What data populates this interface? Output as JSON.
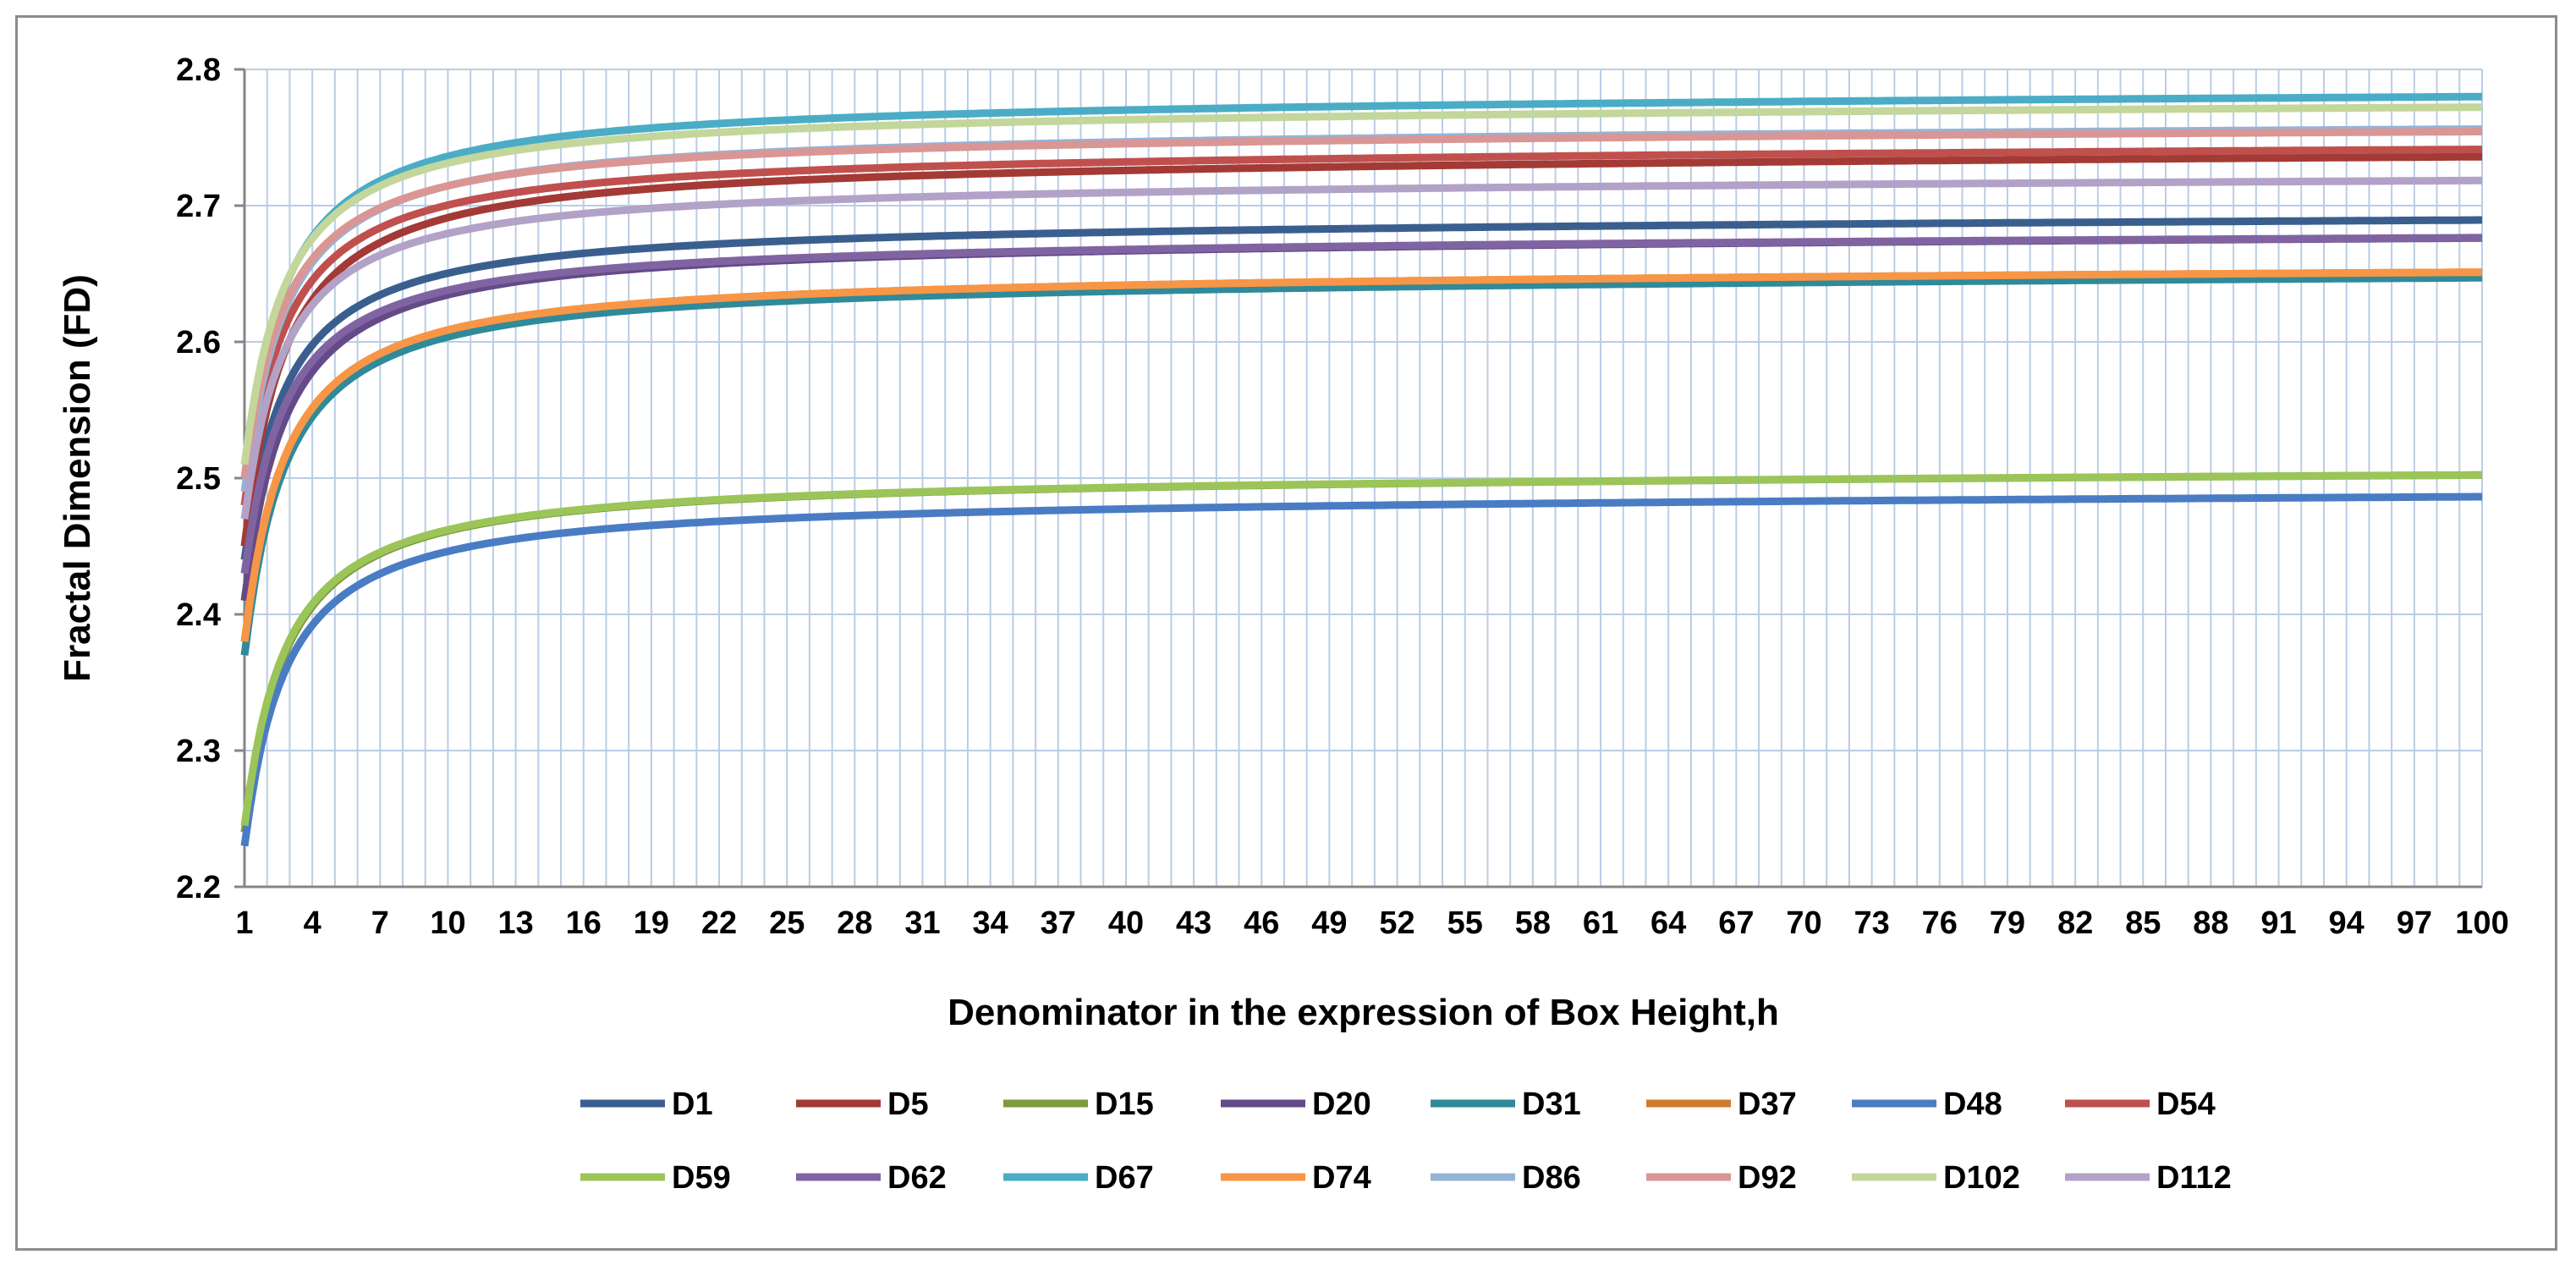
{
  "chart_data": {
    "type": "line",
    "title": "",
    "xlabel": "Denominator in the expression of Box Height,h",
    "ylabel": "Fractal Dimension (FD)",
    "xlim": [
      1,
      100
    ],
    "ylim": [
      2.2,
      2.8
    ],
    "x_ticks": [
      "1",
      "4",
      "7",
      "10",
      "13",
      "16",
      "19",
      "22",
      "25",
      "28",
      "31",
      "34",
      "37",
      "40",
      "43",
      "46",
      "49",
      "52",
      "55",
      "58",
      "61",
      "64",
      "67",
      "70",
      "73",
      "76",
      "79",
      "82",
      "85",
      "88",
      "91",
      "94",
      "97",
      "100"
    ],
    "y_ticks": [
      "2.2",
      "2.3",
      "2.4",
      "2.5",
      "2.6",
      "2.7",
      "2.8"
    ],
    "grid": "vertical and horizontal",
    "legend_position": "bottom",
    "series": [
      {
        "name": "D1",
        "color": "#3a5f8f",
        "start": 2.44,
        "end": 2.693
      },
      {
        "name": "D5",
        "color": "#a33a35",
        "start": 2.45,
        "end": 2.74
      },
      {
        "name": "D15",
        "color": "#7e9a3c",
        "start": 2.24,
        "end": 2.506
      },
      {
        "name": "D20",
        "color": "#644a88",
        "start": 2.41,
        "end": 2.68
      },
      {
        "name": "D31",
        "color": "#2f8a9a",
        "start": 2.37,
        "end": 2.651
      },
      {
        "name": "D37",
        "color": "#d07a2e",
        "start": 2.38,
        "end": 2.655
      },
      {
        "name": "D48",
        "color": "#4a7cc4",
        "start": 2.23,
        "end": 2.49
      },
      {
        "name": "D54",
        "color": "#c0504d",
        "start": 2.48,
        "end": 2.745
      },
      {
        "name": "D59",
        "color": "#9bc559",
        "start": 2.245,
        "end": 2.506
      },
      {
        "name": "D62",
        "color": "#8064a2",
        "start": 2.43,
        "end": 2.68
      },
      {
        "name": "D67",
        "color": "#4bacc6",
        "start": 2.5,
        "end": 2.784
      },
      {
        "name": "D74",
        "color": "#f79646",
        "start": 2.38,
        "end": 2.655
      },
      {
        "name": "D86",
        "color": "#95b3d7",
        "start": 2.49,
        "end": 2.76
      },
      {
        "name": "D92",
        "color": "#d99694",
        "start": 2.5,
        "end": 2.758
      },
      {
        "name": "D102",
        "color": "#c3d69b",
        "start": 2.51,
        "end": 2.776
      },
      {
        "name": "D112",
        "color": "#b2a2c7",
        "start": 2.47,
        "end": 2.722
      }
    ]
  }
}
